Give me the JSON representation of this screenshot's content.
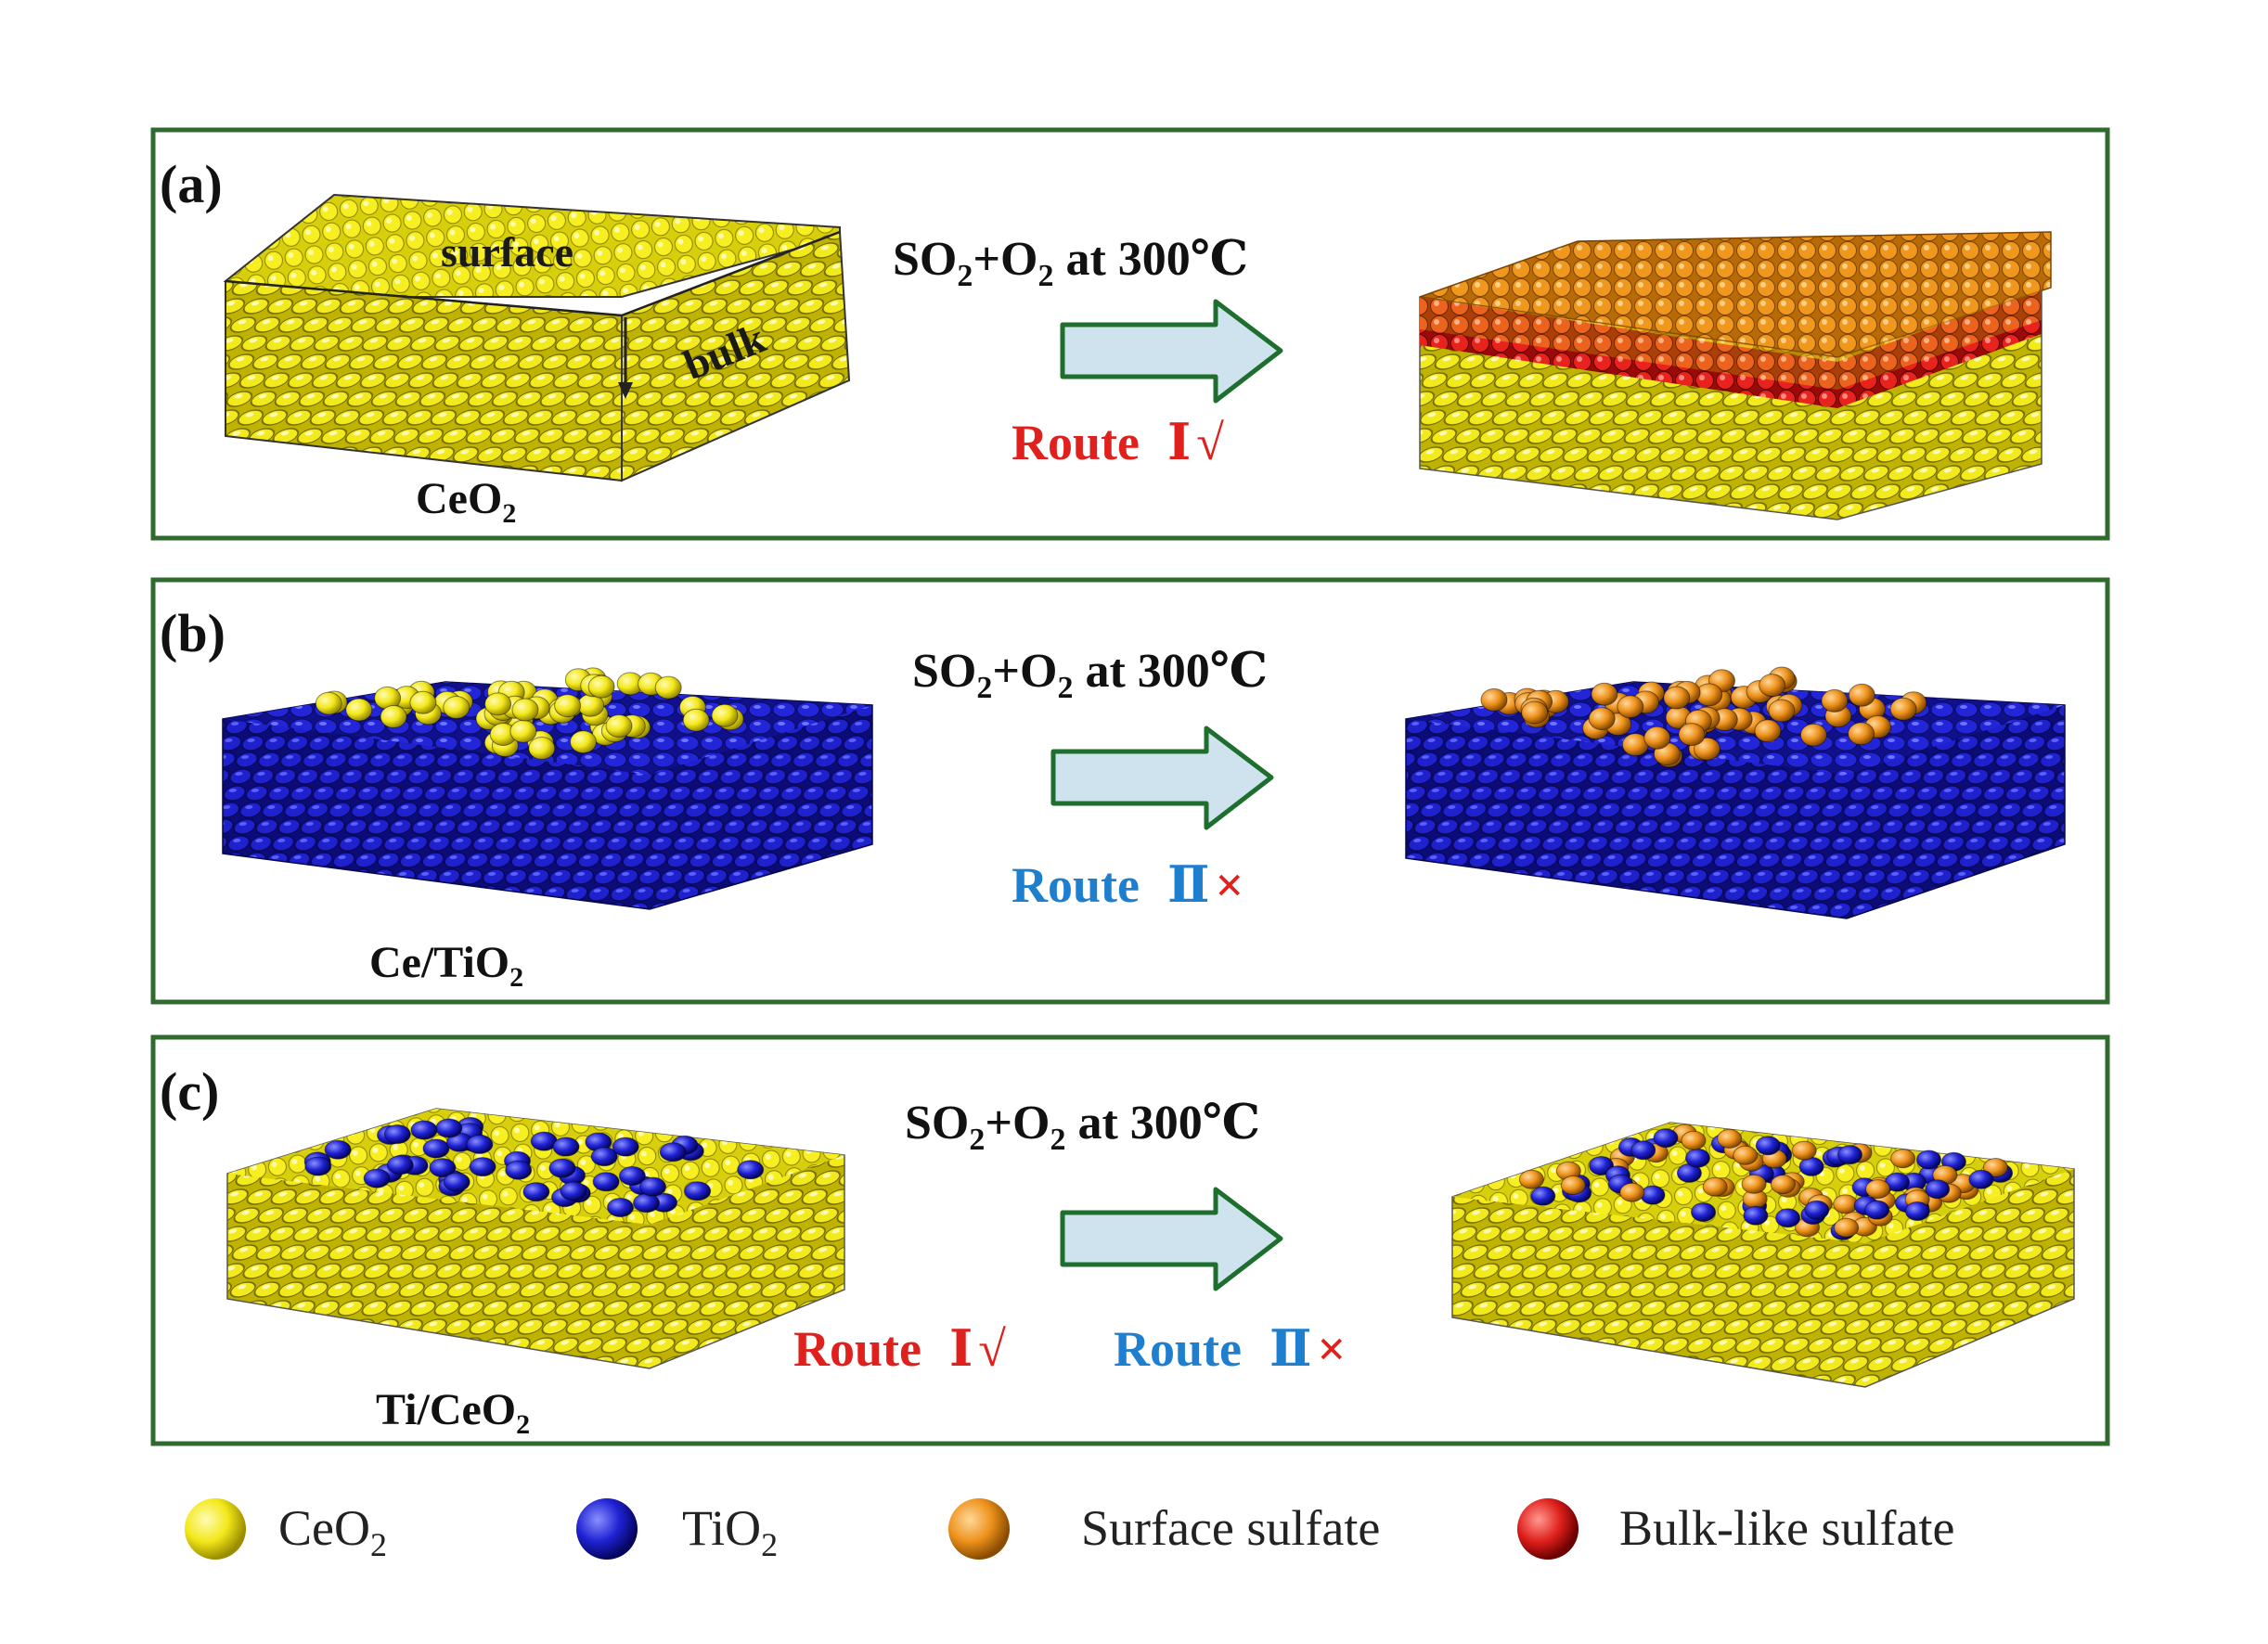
{
  "colors": {
    "ceo2": "#f5ee1c",
    "tio2": "#1d1fd0",
    "surface_sulfate": "#e8901c",
    "bulk_sulfate": "#e0201c",
    "frame": "#2f6a2f",
    "route1": "#e0201c",
    "route2": "#1f7fcf",
    "arrow_fill": "#cfe3ee",
    "arrow_stroke": "#1e6e2e"
  },
  "panels": [
    {
      "letter": "(a)",
      "sample_label": {
        "main": "CeO",
        "sub": "2"
      },
      "block_labels": {
        "surface": "surface",
        "bulk": "bulk"
      },
      "reaction": {
        "so": "SO",
        "sub1": "2",
        "o": "+O",
        "sub2": "2",
        "cond": " at 300℃"
      },
      "routes": [
        {
          "word": "Route",
          "numeral": "Ⅰ",
          "mark": "√",
          "color": "#e0201c"
        }
      ]
    },
    {
      "letter": "(b)",
      "sample_label": {
        "main": "Ce/TiO",
        "sub": "2"
      },
      "reaction": {
        "so": "SO",
        "sub1": "2",
        "o": "+O",
        "sub2": "2",
        "cond": " at 300℃"
      },
      "routes": [
        {
          "word": "Route",
          "numeral": "Ⅱ",
          "mark": "×",
          "color": "#1f7fcf"
        }
      ]
    },
    {
      "letter": "(c)",
      "sample_label": {
        "main": "Ti/CeO",
        "sub": "2"
      },
      "reaction": {
        "so": "SO",
        "sub1": "2",
        "o": "+O",
        "sub2": "2",
        "cond": " at 300℃"
      },
      "routes": [
        {
          "word": "Route",
          "numeral": "Ⅰ",
          "mark": "√",
          "color": "#e0201c"
        },
        {
          "word": "Route",
          "numeral": "Ⅱ",
          "mark": "×",
          "color": "#1f7fcf"
        }
      ]
    }
  ],
  "legend": [
    {
      "label": "CeO",
      "sub": "2",
      "color": "#f5ee1c"
    },
    {
      "label": "TiO",
      "sub": "2",
      "color": "#1d1fd0"
    },
    {
      "label": "Surface sulfate",
      "sub": "",
      "color": "#e8901c"
    },
    {
      "label": "Bulk-like sulfate",
      "sub": "",
      "color": "#e0201c"
    }
  ]
}
